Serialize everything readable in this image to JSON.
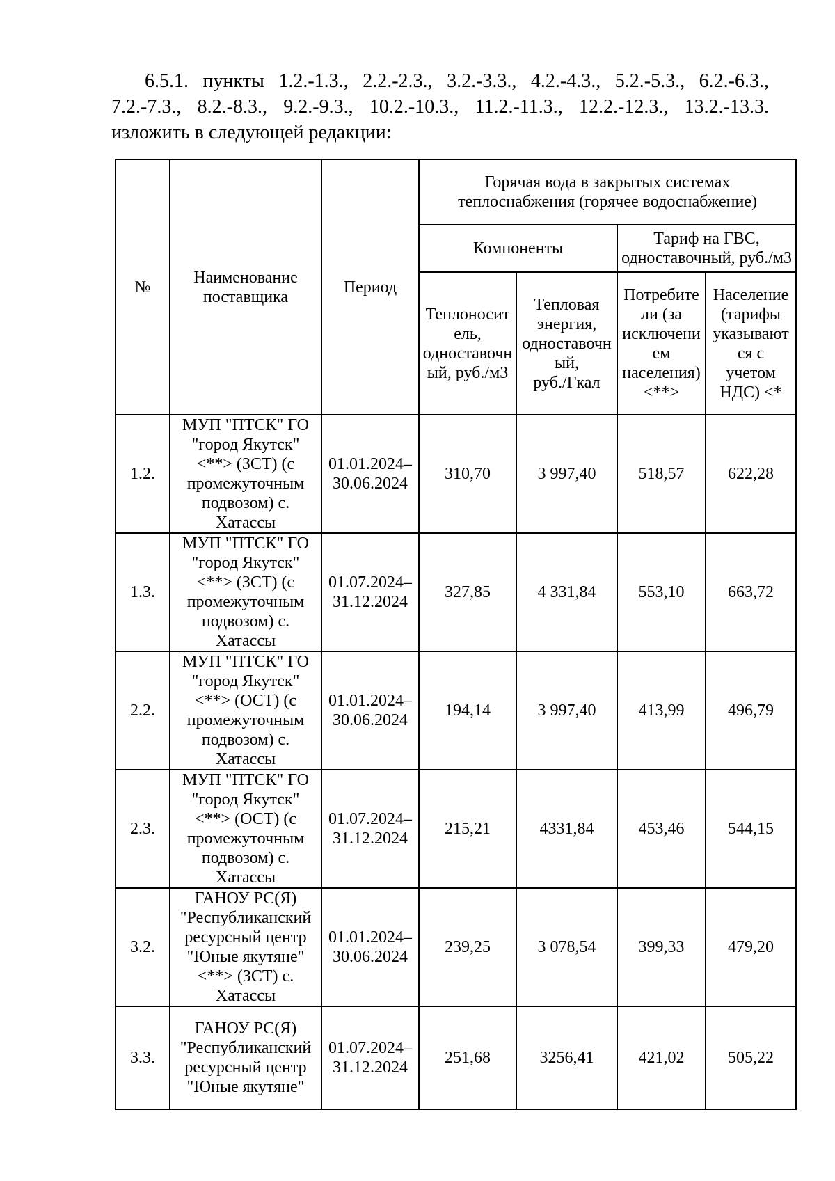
{
  "intro_paragraph": "6.5.1. пункты 1.2.-1.3., 2.2.-2.3., 3.2.-3.3., 4.2.-4.3., 5.2.-5.3., 6.2.-6.3., 7.2.-7.3., 8.2.-8.3., 9.2.-9.3., 10.2.-10.3., 11.2.-11.3., 12.2.-12.3., 13.2.-13.3. изложить в следующей редакции:",
  "table": {
    "headers": {
      "num": "№",
      "supplier": "Наименование\nпоставщика",
      "period": "Период",
      "hot_water_group": "Горячая вода в закрытых системах\nтеплоснабжения (горячее водоснабжение)",
      "components_group": "Компоненты",
      "gvs_group": "Тариф на ГВС,\nодноставочный, руб./м3",
      "coolant": "Теплоносит\nель,\nодноставочн\nый, руб./м3",
      "heat_energy": "Тепловая\nэнергия,\nодноставочн\nый,\nруб./Гкал",
      "consumers": "Потребите\nли (за\nисключени\nем\nнаселения)\n<**>",
      "population": "Население\n(тарифы\nуказывают\nся с\nучетом\nНДС) <*"
    },
    "rows": [
      {
        "num": "1.2.",
        "supplier": "МУП \"ПТСК\" ГО\n\"город Якутск\"\n<**> (ЗСТ) (с\nпромежуточным\nподвозом) с.\nХатассы",
        "period": "01.01.2024–\n30.06.2024",
        "coolant": "310,70",
        "heat": "3 997,40",
        "consumers": "518,57",
        "population": "622,28"
      },
      {
        "num": "1.3.",
        "supplier": "МУП \"ПТСК\" ГО\n\"город Якутск\"\n<**> (ЗСТ) (с\nпромежуточным\nподвозом) с.\nХатассы",
        "period": "01.07.2024–\n31.12.2024",
        "coolant": "327,85",
        "heat": "4 331,84",
        "consumers": "553,10",
        "population": "663,72"
      },
      {
        "num": "2.2.",
        "supplier": "МУП \"ПТСК\" ГО\n\"город Якутск\"\n<**> (ОСТ) (с\nпромежуточным\nподвозом) с.\nХатассы",
        "period": "01.01.2024–\n30.06.2024",
        "coolant": "194,14",
        "heat": "3 997,40",
        "consumers": "413,99",
        "population": "496,79"
      },
      {
        "num": "2.3.",
        "supplier": "МУП \"ПТСК\" ГО\n\"город Якутск\"\n<**> (ОСТ) (с\nпромежуточным\nподвозом) с.\nХатассы",
        "period": "01.07.2024–\n31.12.2024",
        "coolant": "215,21",
        "heat": "4331,84",
        "consumers": "453,46",
        "population": "544,15"
      },
      {
        "num": "3.2.",
        "supplier": "ГАНОУ РС(Я)\n\"Республиканский\nресурсный центр\n\"Юные якутяне\"\n<**> (ЗСТ) с.\nХатассы",
        "period": "01.01.2024–\n30.06.2024",
        "coolant": "239,25",
        "heat": "3 078,54",
        "consumers": "399,33",
        "population": "479,20"
      },
      {
        "num": "3.3.",
        "supplier": "ГАНОУ РС(Я)\n\"Республиканский\nресурсный центр\n\"Юные якутяне\"",
        "period": "01.07.2024–\n31.12.2024",
        "coolant": "251,68",
        "heat": "3256,41",
        "consumers": "421,02",
        "population": "505,22"
      }
    ]
  }
}
